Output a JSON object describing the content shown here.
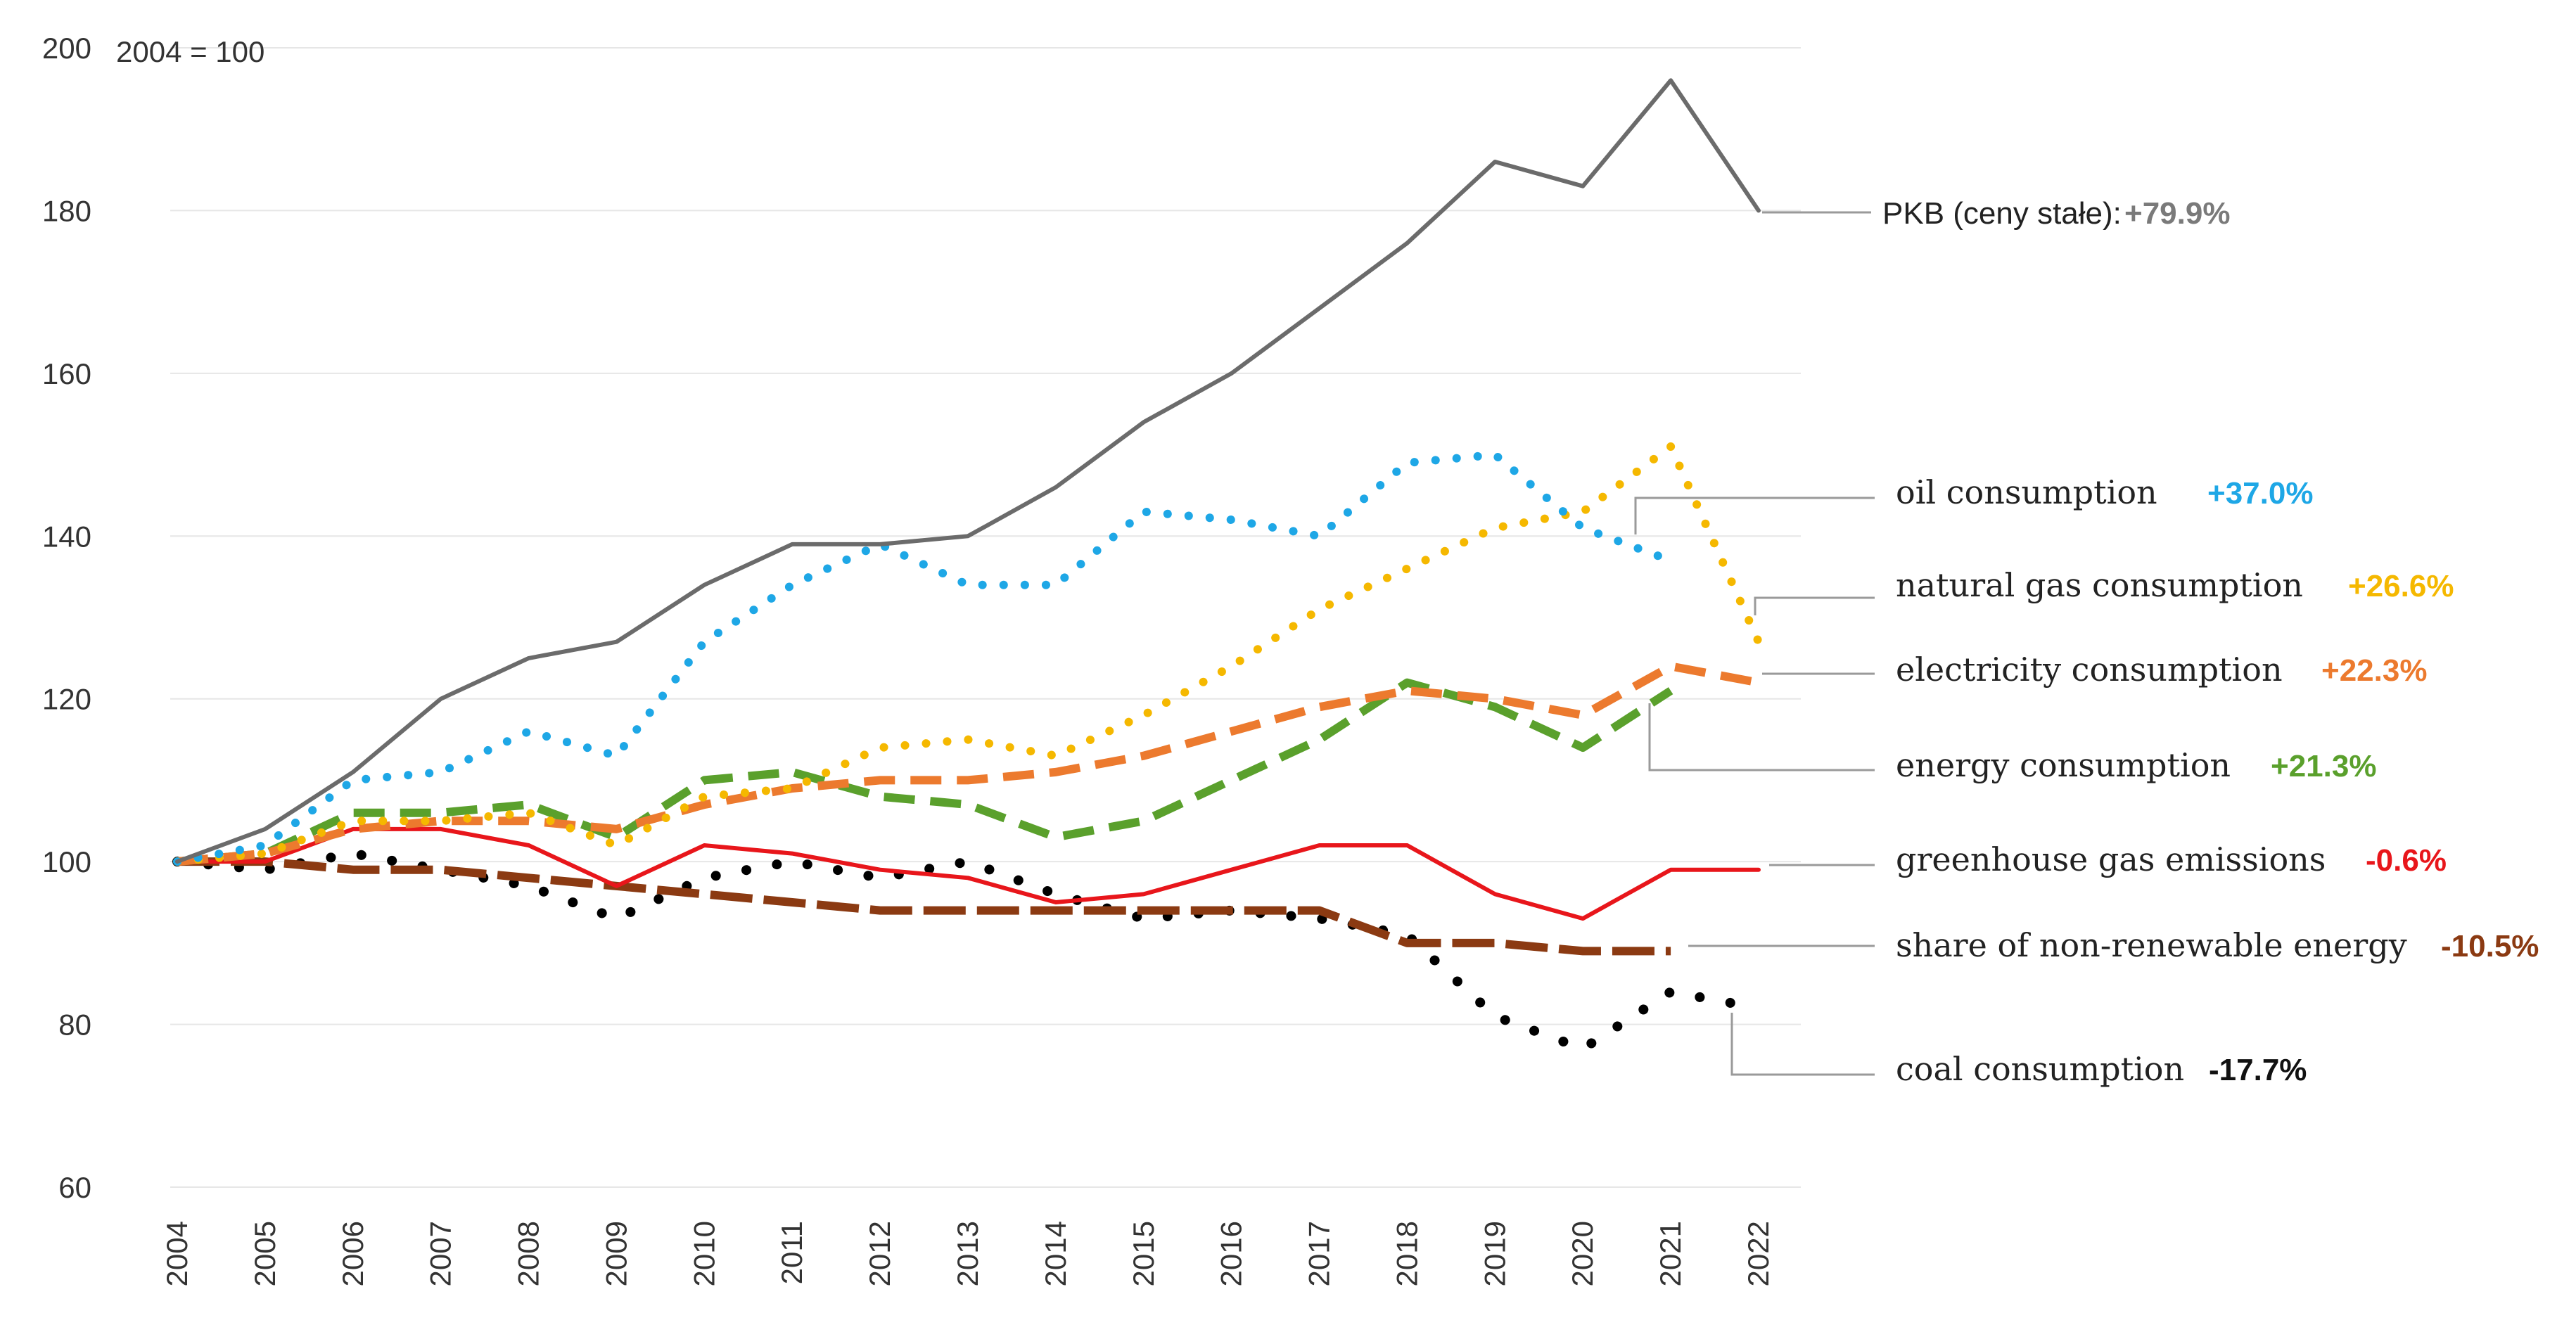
{
  "chart_data": {
    "type": "line",
    "note": "2004 = 100",
    "x": [
      "2004",
      "2005",
      "2006",
      "2007",
      "2008",
      "2009",
      "2010",
      "2011",
      "2012",
      "2013",
      "2014",
      "2015",
      "2016",
      "2017",
      "2018",
      "2019",
      "2020",
      "2021",
      "2022"
    ],
    "ylim": [
      60,
      200
    ],
    "yticks": [
      "60",
      "80",
      "100",
      "120",
      "140",
      "160",
      "180",
      "200"
    ],
    "grid": true,
    "series": [
      {
        "key": "gdp",
        "name": "PKB (ceny stałe):",
        "change": "+79.9%",
        "color": "#6b6b6b",
        "style": "solid",
        "values": [
          100,
          104,
          111,
          120,
          125,
          127,
          134,
          139,
          139,
          140,
          146,
          154,
          160,
          168,
          176,
          186,
          183,
          196,
          180
        ]
      },
      {
        "key": "oil",
        "name": "oil consumption",
        "change": "+37.0%",
        "color": "#1ea7e6",
        "style": "dotted",
        "values": [
          100,
          102,
          110,
          111,
          116,
          113,
          127,
          134,
          139,
          134,
          134,
          143,
          142,
          140,
          149,
          150,
          141,
          137,
          null
        ]
      },
      {
        "key": "gas",
        "name": "natural gas consumption",
        "change": "+26.6%",
        "color": "#f5b800",
        "style": "dotted",
        "values": [
          100,
          101,
          105,
          105,
          106,
          102,
          108,
          109,
          114,
          115,
          113,
          118,
          124,
          131,
          136,
          141,
          143,
          151,
          127
        ]
      },
      {
        "key": "elec",
        "name": "electricity consumption",
        "change": "+22.3%",
        "color": "#ec7a2e",
        "style": "dashed",
        "values": [
          100,
          101,
          104,
          105,
          105,
          104,
          107,
          109,
          110,
          110,
          111,
          113,
          116,
          119,
          121,
          120,
          118,
          124,
          122
        ]
      },
      {
        "key": "energy",
        "name": "energy consumption",
        "change": "+21.3%",
        "color": "#5aa02c",
        "style": "dashed",
        "values": [
          100,
          101,
          106,
          106,
          107,
          103,
          110,
          111,
          108,
          107,
          103,
          105,
          110,
          115,
          122,
          119,
          114,
          121,
          null
        ]
      },
      {
        "key": "ghg",
        "name": "greenhouse gas emissions",
        "change": "-0.6%",
        "color": "#e8161b",
        "style": "solid",
        "values": [
          100,
          100,
          104,
          104,
          102,
          97,
          102,
          101,
          99,
          98,
          95,
          96,
          99,
          102,
          102,
          96,
          93,
          99,
          99
        ]
      },
      {
        "key": "nonren",
        "name": "share of non-renewable energy",
        "change": "-10.5%",
        "color": "#8b3a12",
        "style": "longdash",
        "values": [
          100,
          100,
          99,
          99,
          98,
          97,
          96,
          95,
          94,
          94,
          94,
          94,
          94,
          94,
          90,
          90,
          89,
          89,
          null
        ]
      },
      {
        "key": "coal",
        "name": "coal consumption",
        "change": "-17.7%",
        "color": "#000000",
        "style": "dots",
        "values": [
          100,
          99,
          101,
          99,
          97,
          93,
          98,
          100,
          98,
          100,
          96,
          93,
          94,
          93,
          91,
          81,
          77,
          84,
          82
        ]
      }
    ]
  }
}
